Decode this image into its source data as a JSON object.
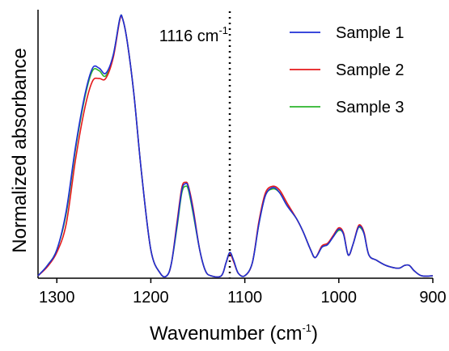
{
  "chart_data": {
    "type": "line",
    "xlabel": "Wavenumber (cm",
    "xlabel_sup": "-1",
    "xlabel_end": ")",
    "ylabel": "Normalized absorbance",
    "xlim": [
      1320,
      900
    ],
    "ylim": [
      0,
      1
    ],
    "x_reversed": true,
    "x_ticks": [
      1300,
      1200,
      1100,
      1000,
      900
    ],
    "legend_position": "top-right",
    "annotation": {
      "text": "1116 cm",
      "sup": "-1",
      "x": 1116,
      "line_style": "dotted"
    },
    "series": [
      {
        "name": "Sample 1",
        "color": "#1f2fd6",
        "points": [
          [
            1320,
            0.0
          ],
          [
            1310,
            0.04
          ],
          [
            1300,
            0.1
          ],
          [
            1290,
            0.25
          ],
          [
            1280,
            0.5
          ],
          [
            1270,
            0.7
          ],
          [
            1262,
            0.8
          ],
          [
            1255,
            0.8
          ],
          [
            1248,
            0.78
          ],
          [
            1240,
            0.85
          ],
          [
            1233,
            0.99
          ],
          [
            1230,
            0.99
          ],
          [
            1225,
            0.9
          ],
          [
            1218,
            0.7
          ],
          [
            1210,
            0.4
          ],
          [
            1200,
            0.1
          ],
          [
            1190,
            0.01
          ],
          [
            1183,
            0.0
          ],
          [
            1178,
            0.05
          ],
          [
            1172,
            0.2
          ],
          [
            1167,
            0.33
          ],
          [
            1163,
            0.355
          ],
          [
            1160,
            0.34
          ],
          [
            1155,
            0.25
          ],
          [
            1148,
            0.1
          ],
          [
            1142,
            0.02
          ],
          [
            1136,
            0.0
          ],
          [
            1125,
            0.0
          ],
          [
            1120,
            0.05
          ],
          [
            1116,
            0.09
          ],
          [
            1112,
            0.06
          ],
          [
            1107,
            0.01
          ],
          [
            1100,
            0.0
          ],
          [
            1092,
            0.05
          ],
          [
            1085,
            0.2
          ],
          [
            1078,
            0.31
          ],
          [
            1070,
            0.34
          ],
          [
            1063,
            0.32
          ],
          [
            1055,
            0.27
          ],
          [
            1045,
            0.22
          ],
          [
            1038,
            0.17
          ],
          [
            1030,
            0.1
          ],
          [
            1025,
            0.07
          ],
          [
            1018,
            0.11
          ],
          [
            1012,
            0.12
          ],
          [
            1006,
            0.15
          ],
          [
            1000,
            0.18
          ],
          [
            995,
            0.16
          ],
          [
            990,
            0.08
          ],
          [
            985,
            0.12
          ],
          [
            980,
            0.18
          ],
          [
            977,
            0.19
          ],
          [
            973,
            0.16
          ],
          [
            968,
            0.08
          ],
          [
            960,
            0.06
          ],
          [
            950,
            0.04
          ],
          [
            940,
            0.03
          ],
          [
            935,
            0.03
          ],
          [
            930,
            0.04
          ],
          [
            925,
            0.04
          ],
          [
            920,
            0.02
          ],
          [
            912,
            0.0
          ],
          [
            900,
            0.0
          ]
        ]
      },
      {
        "name": "Sample 2",
        "color": "#e41a1c",
        "points": [
          [
            1320,
            0.0
          ],
          [
            1310,
            0.035
          ],
          [
            1300,
            0.09
          ],
          [
            1290,
            0.2
          ],
          [
            1280,
            0.45
          ],
          [
            1270,
            0.65
          ],
          [
            1262,
            0.75
          ],
          [
            1255,
            0.76
          ],
          [
            1248,
            0.76
          ],
          [
            1240,
            0.84
          ],
          [
            1233,
            0.985
          ],
          [
            1230,
            0.99
          ],
          [
            1225,
            0.9
          ],
          [
            1218,
            0.7
          ],
          [
            1210,
            0.4
          ],
          [
            1200,
            0.1
          ],
          [
            1190,
            0.01
          ],
          [
            1183,
            0.0
          ],
          [
            1178,
            0.05
          ],
          [
            1172,
            0.21
          ],
          [
            1167,
            0.34
          ],
          [
            1163,
            0.36
          ],
          [
            1160,
            0.345
          ],
          [
            1155,
            0.26
          ],
          [
            1148,
            0.1
          ],
          [
            1142,
            0.02
          ],
          [
            1136,
            0.0
          ],
          [
            1125,
            0.0
          ],
          [
            1120,
            0.05
          ],
          [
            1116,
            0.085
          ],
          [
            1112,
            0.055
          ],
          [
            1107,
            0.01
          ],
          [
            1100,
            0.0
          ],
          [
            1092,
            0.05
          ],
          [
            1085,
            0.21
          ],
          [
            1078,
            0.32
          ],
          [
            1070,
            0.345
          ],
          [
            1063,
            0.33
          ],
          [
            1055,
            0.28
          ],
          [
            1045,
            0.22
          ],
          [
            1038,
            0.17
          ],
          [
            1030,
            0.1
          ],
          [
            1025,
            0.07
          ],
          [
            1018,
            0.115
          ],
          [
            1012,
            0.125
          ],
          [
            1006,
            0.155
          ],
          [
            1000,
            0.185
          ],
          [
            995,
            0.165
          ],
          [
            990,
            0.08
          ],
          [
            985,
            0.12
          ],
          [
            980,
            0.185
          ],
          [
            977,
            0.195
          ],
          [
            973,
            0.165
          ],
          [
            968,
            0.08
          ],
          [
            960,
            0.06
          ],
          [
            950,
            0.04
          ],
          [
            940,
            0.03
          ],
          [
            935,
            0.03
          ],
          [
            930,
            0.04
          ],
          [
            925,
            0.04
          ],
          [
            920,
            0.02
          ],
          [
            912,
            0.0
          ],
          [
            900,
            0.0
          ]
        ]
      },
      {
        "name": "Sample 3",
        "color": "#2cb52c",
        "points": [
          [
            1320,
            0.0
          ],
          [
            1310,
            0.04
          ],
          [
            1300,
            0.1
          ],
          [
            1290,
            0.24
          ],
          [
            1280,
            0.49
          ],
          [
            1270,
            0.69
          ],
          [
            1262,
            0.79
          ],
          [
            1255,
            0.79
          ],
          [
            1248,
            0.77
          ],
          [
            1240,
            0.85
          ],
          [
            1233,
            0.99
          ],
          [
            1230,
            0.99
          ],
          [
            1225,
            0.9
          ],
          [
            1218,
            0.7
          ],
          [
            1210,
            0.4
          ],
          [
            1200,
            0.1
          ],
          [
            1190,
            0.01
          ],
          [
            1183,
            0.0
          ],
          [
            1178,
            0.05
          ],
          [
            1172,
            0.19
          ],
          [
            1167,
            0.32
          ],
          [
            1163,
            0.345
          ],
          [
            1160,
            0.33
          ],
          [
            1155,
            0.24
          ],
          [
            1148,
            0.1
          ],
          [
            1142,
            0.02
          ],
          [
            1136,
            0.0
          ],
          [
            1125,
            0.0
          ],
          [
            1120,
            0.05
          ],
          [
            1116,
            0.09
          ],
          [
            1112,
            0.06
          ],
          [
            1107,
            0.01
          ],
          [
            1100,
            0.0
          ],
          [
            1092,
            0.05
          ],
          [
            1085,
            0.2
          ],
          [
            1078,
            0.31
          ],
          [
            1070,
            0.335
          ],
          [
            1063,
            0.32
          ],
          [
            1055,
            0.27
          ],
          [
            1045,
            0.22
          ],
          [
            1038,
            0.17
          ],
          [
            1030,
            0.1
          ],
          [
            1025,
            0.07
          ],
          [
            1018,
            0.11
          ],
          [
            1012,
            0.12
          ],
          [
            1006,
            0.15
          ],
          [
            1000,
            0.175
          ],
          [
            995,
            0.16
          ],
          [
            990,
            0.08
          ],
          [
            985,
            0.12
          ],
          [
            980,
            0.18
          ],
          [
            977,
            0.185
          ],
          [
            973,
            0.16
          ],
          [
            968,
            0.08
          ],
          [
            960,
            0.06
          ],
          [
            950,
            0.04
          ],
          [
            940,
            0.03
          ],
          [
            935,
            0.03
          ],
          [
            930,
            0.04
          ],
          [
            925,
            0.04
          ],
          [
            920,
            0.02
          ],
          [
            912,
            0.0
          ],
          [
            900,
            0.0
          ]
        ]
      }
    ]
  }
}
